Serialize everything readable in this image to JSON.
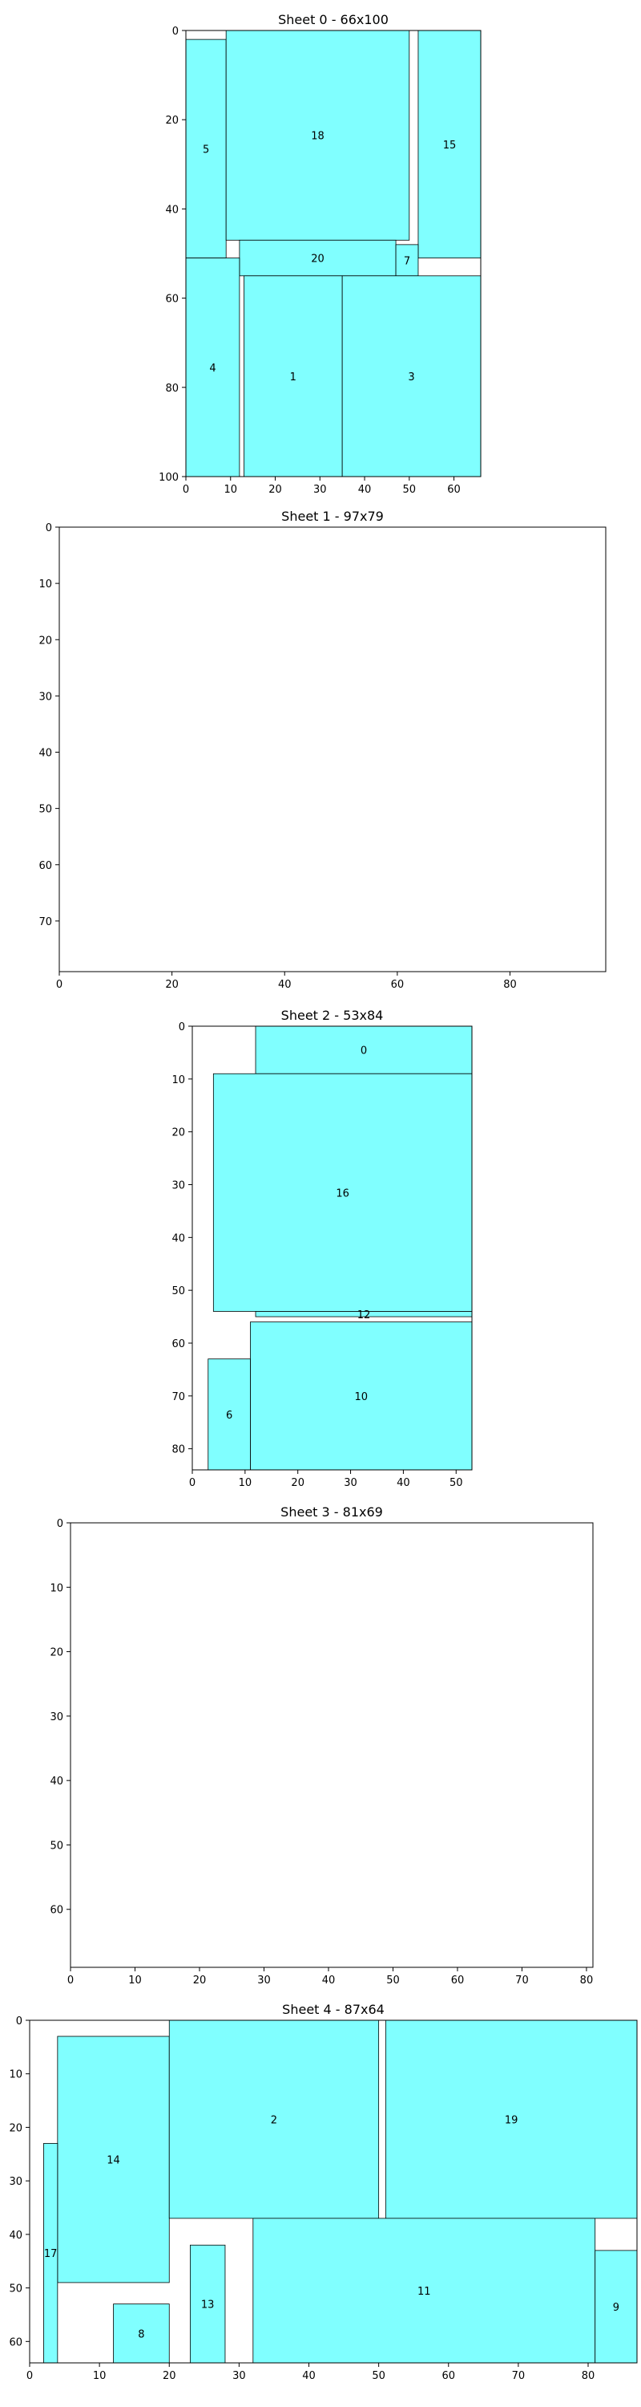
{
  "style": {
    "piece_fill": "#80ffff",
    "piece_stroke": "#000000",
    "background": "#ffffff"
  },
  "chart_data": [
    {
      "type": "rectangle-packing",
      "title": "Sheet 0 - 66x100",
      "xlim": [
        0,
        66
      ],
      "ylim": [
        100,
        0
      ],
      "xticks": [
        0,
        10,
        20,
        30,
        40,
        50,
        60
      ],
      "yticks": [
        0,
        20,
        40,
        60,
        80,
        100
      ],
      "pieces": [
        {
          "id": "5",
          "x": 0,
          "y": 2,
          "w": 9,
          "h": 49
        },
        {
          "id": "18",
          "x": 9,
          "y": 0,
          "w": 41,
          "h": 47
        },
        {
          "id": "15",
          "x": 52,
          "y": 0,
          "w": 14,
          "h": 51
        },
        {
          "id": "20",
          "x": 12,
          "y": 47,
          "w": 35,
          "h": 8
        },
        {
          "id": "7",
          "x": 47,
          "y": 48,
          "w": 5,
          "h": 7
        },
        {
          "id": "4",
          "x": 0,
          "y": 51,
          "w": 12,
          "h": 49
        },
        {
          "id": "1",
          "x": 13,
          "y": 55,
          "w": 22,
          "h": 45
        },
        {
          "id": "3",
          "x": 35,
          "y": 55,
          "w": 31,
          "h": 45
        }
      ]
    },
    {
      "type": "rectangle-packing",
      "title": "Sheet 1 - 97x79",
      "xlim": [
        0,
        97
      ],
      "ylim": [
        79,
        0
      ],
      "xticks": [
        0,
        20,
        40,
        60,
        80
      ],
      "yticks": [
        0,
        10,
        20,
        30,
        40,
        50,
        60,
        70
      ],
      "pieces": []
    },
    {
      "type": "rectangle-packing",
      "title": "Sheet 2 - 53x84",
      "xlim": [
        0,
        53
      ],
      "ylim": [
        84,
        0
      ],
      "xticks": [
        0,
        10,
        20,
        30,
        40,
        50
      ],
      "yticks": [
        0,
        10,
        20,
        30,
        40,
        50,
        60,
        70,
        80
      ],
      "pieces": [
        {
          "id": "0",
          "x": 12,
          "y": 0,
          "w": 41,
          "h": 9
        },
        {
          "id": "16",
          "x": 4,
          "y": 9,
          "w": 49,
          "h": 45
        },
        {
          "id": "12",
          "x": 12,
          "y": 54,
          "w": 41,
          "h": 1
        },
        {
          "id": "10",
          "x": 11,
          "y": 56,
          "w": 42,
          "h": 28
        },
        {
          "id": "6",
          "x": 3,
          "y": 63,
          "w": 8,
          "h": 21
        }
      ]
    },
    {
      "type": "rectangle-packing",
      "title": "Sheet 3 - 81x69",
      "xlim": [
        0,
        81
      ],
      "ylim": [
        69,
        0
      ],
      "xticks": [
        0,
        10,
        20,
        30,
        40,
        50,
        60,
        70,
        80
      ],
      "yticks": [
        0,
        10,
        20,
        30,
        40,
        50,
        60
      ],
      "pieces": []
    },
    {
      "type": "rectangle-packing",
      "title": "Sheet 4 - 87x64",
      "xlim": [
        0,
        87
      ],
      "ylim": [
        64,
        0
      ],
      "xticks": [
        0,
        10,
        20,
        30,
        40,
        50,
        60,
        70,
        80
      ],
      "yticks": [
        0,
        10,
        20,
        30,
        40,
        50,
        60
      ],
      "pieces": [
        {
          "id": "14",
          "x": 4,
          "y": 3,
          "w": 16,
          "h": 46
        },
        {
          "id": "2",
          "x": 20,
          "y": 0,
          "w": 30,
          "h": 37
        },
        {
          "id": "19",
          "x": 51,
          "y": 0,
          "w": 36,
          "h": 37
        },
        {
          "id": "17",
          "x": 2,
          "y": 23,
          "w": 2,
          "h": 41
        },
        {
          "id": "13",
          "x": 23,
          "y": 42,
          "w": 5,
          "h": 22
        },
        {
          "id": "8",
          "x": 12,
          "y": 53,
          "w": 8,
          "h": 11
        },
        {
          "id": "11",
          "x": 32,
          "y": 37,
          "w": 49,
          "h": 27
        },
        {
          "id": "9",
          "x": 81,
          "y": 43,
          "w": 6,
          "h": 21
        }
      ]
    }
  ]
}
